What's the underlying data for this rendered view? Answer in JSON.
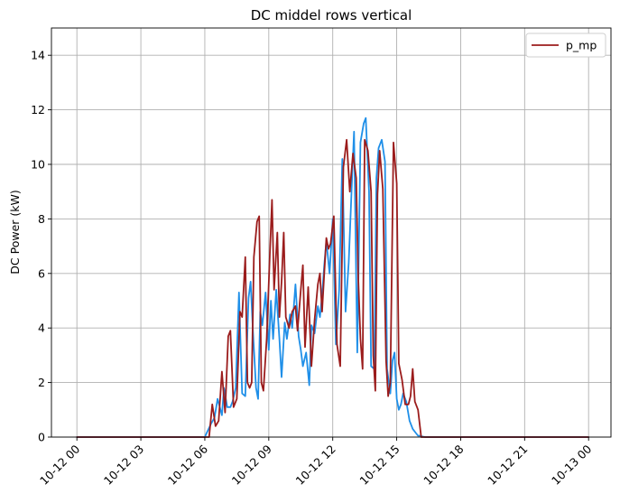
{
  "chart_data": {
    "type": "line",
    "title": "DC middel rows vertical",
    "xlabel": "",
    "ylabel": "DC Power (kW)",
    "xlim": [
      0,
      24
    ],
    "ylim": [
      0,
      15
    ],
    "x_ticks": [
      0,
      3,
      6,
      9,
      12,
      15,
      18,
      21,
      24
    ],
    "x_tick_labels": [
      "10-12 00",
      "10-12 03",
      "10-12 06",
      "10-12 09",
      "10-12 12",
      "10-12 15",
      "10-12 18",
      "10-12 21",
      "10-13 00"
    ],
    "y_ticks": [
      0,
      2,
      4,
      6,
      8,
      10,
      12,
      14
    ],
    "y_tick_labels": [
      "0",
      "2",
      "4",
      "6",
      "8",
      "10",
      "12",
      "14"
    ],
    "grid": true,
    "legend": {
      "placement": "top-right",
      "entries": [
        "p_mp"
      ]
    },
    "x_unit": "hours from 10-12 00:00",
    "series": [
      {
        "name": "",
        "color": "#1f8fe8",
        "x": [
          0,
          6.0,
          6.3,
          6.45,
          6.6,
          6.8,
          6.9,
          7.05,
          7.2,
          7.3,
          7.45,
          7.6,
          7.75,
          7.9,
          8.05,
          8.15,
          8.25,
          8.4,
          8.5,
          8.6,
          8.7,
          8.85,
          9.0,
          9.1,
          9.2,
          9.35,
          9.5,
          9.6,
          9.75,
          9.85,
          10.0,
          10.1,
          10.25,
          10.4,
          10.5,
          10.6,
          10.75,
          10.9,
          11.0,
          11.15,
          11.3,
          11.4,
          11.5,
          11.6,
          11.7,
          11.85,
          12.0,
          12.15,
          12.3,
          12.45,
          12.6,
          12.75,
          12.9,
          13.0,
          13.15,
          13.3,
          13.45,
          13.55,
          13.7,
          13.8,
          13.95,
          14.05,
          14.15,
          14.3,
          14.45,
          14.55,
          14.7,
          14.8,
          14.9,
          15.0,
          15.1,
          15.2,
          15.3,
          15.45,
          15.6,
          15.75,
          15.9,
          16.0,
          16.1,
          16.2,
          16.35,
          16.5,
          16.65,
          24
        ],
        "values": [
          0,
          0,
          0.5,
          0.7,
          1.4,
          0.8,
          1.8,
          1.1,
          1.1,
          1.3,
          1.8,
          5.3,
          1.6,
          1.5,
          5.1,
          5.7,
          4.0,
          1.8,
          1.4,
          4.6,
          4.1,
          5.3,
          3.2,
          5.0,
          3.6,
          5.4,
          3.6,
          2.2,
          4.2,
          3.6,
          4.5,
          4.0,
          5.6,
          3.7,
          3.2,
          2.6,
          3.1,
          1.9,
          4.1,
          3.8,
          4.8,
          4.4,
          5.2,
          6.3,
          7.2,
          6.0,
          8.0,
          3.4,
          5.4,
          10.2,
          4.6,
          6.4,
          9.4,
          11.2,
          3.1,
          10.8,
          11.5,
          11.7,
          9.0,
          2.6,
          2.5,
          9.5,
          10.6,
          10.9,
          10.1,
          2.5,
          1.6,
          2.8,
          3.1,
          1.4,
          1.0,
          1.2,
          1.6,
          1.3,
          0.6,
          0.3,
          0.15,
          0.05,
          0.05,
          0.02,
          0,
          0,
          0,
          0
        ]
      },
      {
        "name": "p_mp",
        "color": "#9b1c1c",
        "x": [
          0,
          6.2,
          6.35,
          6.5,
          6.65,
          6.8,
          6.95,
          7.1,
          7.2,
          7.35,
          7.5,
          7.65,
          7.75,
          7.9,
          8.0,
          8.1,
          8.2,
          8.3,
          8.45,
          8.55,
          8.65,
          8.75,
          8.9,
          9.05,
          9.15,
          9.25,
          9.4,
          9.5,
          9.6,
          9.7,
          9.8,
          9.95,
          10.1,
          10.25,
          10.35,
          10.5,
          10.6,
          10.7,
          10.85,
          11.0,
          11.15,
          11.3,
          11.4,
          11.5,
          11.6,
          11.7,
          11.8,
          11.9,
          12.05,
          12.2,
          12.35,
          12.5,
          12.65,
          12.8,
          12.95,
          13.1,
          13.2,
          13.3,
          13.4,
          13.5,
          13.65,
          13.8,
          13.9,
          14.0,
          14.1,
          14.2,
          14.35,
          14.5,
          14.6,
          14.7,
          14.85,
          15.0,
          15.1,
          15.25,
          15.4,
          15.55,
          15.65,
          15.75,
          15.85,
          16.0,
          16.15,
          16.3,
          24
        ],
        "values": [
          0,
          0,
          1.2,
          0.4,
          0.6,
          2.4,
          0.9,
          3.7,
          3.9,
          1.1,
          1.4,
          4.6,
          4.4,
          6.6,
          2.0,
          1.8,
          2.0,
          6.6,
          7.9,
          8.1,
          2.0,
          1.7,
          3.6,
          6.7,
          8.7,
          5.4,
          7.5,
          4.4,
          5.7,
          7.5,
          4.4,
          4.0,
          4.6,
          4.8,
          3.9,
          5.4,
          6.3,
          3.3,
          5.5,
          2.6,
          4.3,
          5.6,
          6.0,
          4.6,
          6.0,
          7.3,
          6.9,
          7.1,
          8.1,
          3.4,
          2.6,
          9.9,
          10.9,
          9.0,
          10.4,
          9.5,
          5.8,
          3.6,
          2.5,
          10.9,
          10.5,
          9.0,
          3.0,
          1.7,
          8.9,
          10.5,
          9.1,
          2.8,
          1.5,
          2.0,
          10.8,
          9.3,
          2.7,
          2.1,
          1.2,
          1.2,
          1.5,
          2.5,
          1.3,
          1.0,
          0.0,
          0,
          0
        ]
      }
    ]
  }
}
